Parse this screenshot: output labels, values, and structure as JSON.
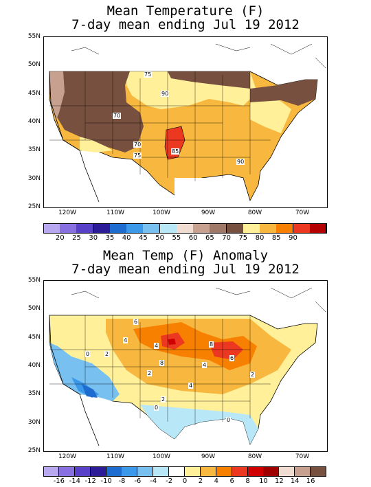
{
  "panel1": {
    "title_line1": "Mean Temperature (F)",
    "title_line2": "7-day mean ending Jul 19 2012",
    "lat_labels": [
      "55N",
      "50N",
      "45N",
      "40N",
      "35N",
      "30N",
      "25N"
    ],
    "lon_labels": [
      "120W",
      "110W",
      "100W",
      "90W",
      "80W",
      "70W"
    ],
    "contour_labels": [
      "75",
      "90",
      "70",
      "70",
      "75",
      "85",
      "90"
    ],
    "colorbar": {
      "colors": [
        "#b8a8f0",
        "#8870e0",
        "#5840c8",
        "#2c1c98",
        "#1e6cd0",
        "#3c98e8",
        "#78c0f0",
        "#b8e8f8",
        "#f0dcd0",
        "#c8a090",
        "#a07868",
        "#785040",
        "#fff099",
        "#f8b840",
        "#f88000",
        "#ec3820",
        "#b40000"
      ],
      "labels": [
        "20",
        "25",
        "30",
        "35",
        "40",
        "45",
        "50",
        "55",
        "60",
        "65",
        "70",
        "75",
        "80",
        "85",
        "90"
      ]
    }
  },
  "panel2": {
    "title_line1": "Mean Temp (F) Anomaly",
    "title_line2": "7-day mean ending Jul 19 2012",
    "lat_labels": [
      "55N",
      "50N",
      "45N",
      "40N",
      "35N",
      "30N",
      "25N"
    ],
    "lon_labels": [
      "120W",
      "110W",
      "100W",
      "90W",
      "80W",
      "70W"
    ],
    "contour_labels": [
      "0",
      "2",
      "4",
      "6",
      "4",
      "8",
      "8",
      "6",
      "4",
      "2",
      "2",
      "0",
      "0",
      "4",
      "2"
    ],
    "colorbar": {
      "colors": [
        "#b8a8f0",
        "#8870e0",
        "#5840c8",
        "#2c1c98",
        "#1e6cd0",
        "#3c98e8",
        "#78c0f0",
        "#b8e8f8",
        "#ffffff",
        "#fff099",
        "#f8b840",
        "#f88000",
        "#ec3820",
        "#d00000",
        "#a00000",
        "#f0dcd0",
        "#c8a090",
        "#785040"
      ],
      "labels": [
        "-16",
        "-14",
        "-12",
        "-10",
        "-8",
        "-6",
        "-4",
        "-2",
        "0",
        "2",
        "4",
        "6",
        "8",
        "10",
        "12",
        "14",
        "16"
      ]
    }
  }
}
